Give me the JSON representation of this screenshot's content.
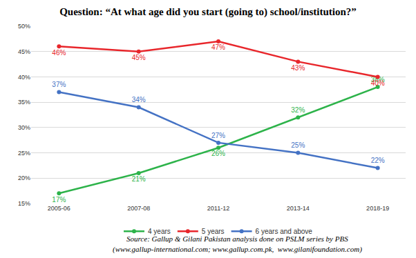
{
  "chart_data": {
    "type": "line",
    "title": "Question: “At what age did you start (going to) school/institution?”",
    "categories": [
      "2005-06",
      "2007-08",
      "2011-12",
      "2013-14",
      "2018-19"
    ],
    "series": [
      {
        "name": "4 years",
        "color": "#2db34a",
        "marker": "circle",
        "values": [
          17,
          21,
          26,
          32,
          38
        ],
        "value_labels": [
          "17%",
          "21%",
          "26%",
          "32%",
          "38%"
        ]
      },
      {
        "name": "5 years",
        "color": "#e8262b",
        "marker": "circle",
        "values": [
          46,
          45,
          47,
          43,
          40
        ],
        "value_labels": [
          "46%",
          "45%",
          "47%",
          "43%",
          "40%"
        ]
      },
      {
        "name": "6 years and above",
        "color": "#4472c4",
        "marker": "circle",
        "values": [
          37,
          34,
          27,
          25,
          22
        ],
        "value_labels": [
          "37%",
          "34%",
          "27%",
          "25%",
          "22%"
        ]
      }
    ],
    "ylim": [
      15,
      50
    ],
    "yticks": [
      {
        "value": 15,
        "label": "15%"
      },
      {
        "value": 20,
        "label": "20%"
      },
      {
        "value": 25,
        "label": "25%"
      },
      {
        "value": 30,
        "label": "30%"
      },
      {
        "value": 35,
        "label": "35%"
      },
      {
        "value": 40,
        "label": "40%"
      },
      {
        "value": 45,
        "label": "45%"
      },
      {
        "value": 50,
        "label": "50%"
      }
    ],
    "grid": true,
    "legend": "bottom",
    "data_labels": true,
    "annotations": [
      "Source: Gallup & Gilani Pakistan analysis done on PSLM series by PBS",
      "(www.gallup-international.com; www.gallup.com.pk,  www.gilanifoundation.com)"
    ]
  }
}
